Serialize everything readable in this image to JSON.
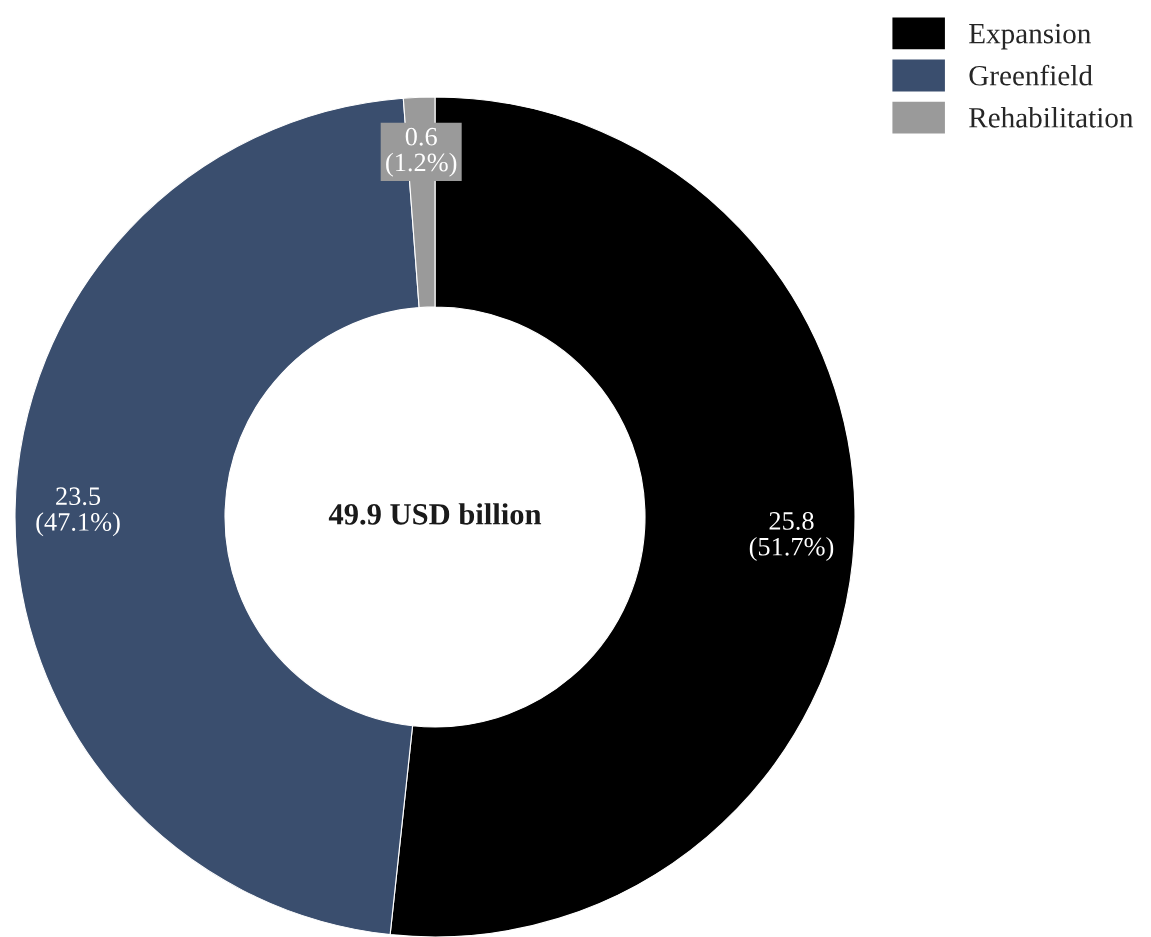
{
  "chart_data": {
    "type": "donut",
    "categories": [
      "Expansion",
      "Greenfield",
      "Rehabilitation"
    ],
    "values": [
      25.8,
      23.5,
      0.6
    ],
    "colors": [
      "#000000",
      "#3a4e6e",
      "#9a9a9a"
    ],
    "value_labels": [
      "25.8\n(51.7%)",
      "23.5\n(47.1%)",
      "0.6\n(1.2%)"
    ],
    "annotations": [
      "49.9 USD billion"
    ],
    "legend": "top right"
  }
}
